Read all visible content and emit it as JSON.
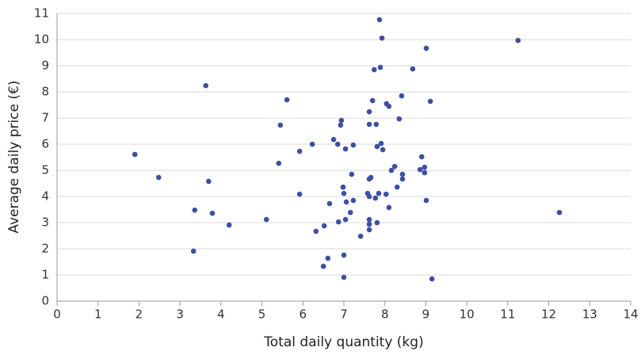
{
  "chart_data": {
    "type": "scatter",
    "xlabel": "Total daily quantity (kg)",
    "ylabel": "Average daily price (€)",
    "color": "#3d4fa3",
    "grid": true,
    "xlim": [
      0,
      14
    ],
    "xticks": [
      0,
      1,
      2,
      3,
      4,
      5,
      6,
      7,
      8,
      9,
      10,
      11,
      12,
      13,
      14
    ],
    "ylim": [
      0,
      11
    ],
    "yticks": [
      0,
      1,
      2,
      3,
      4,
      5,
      6,
      7,
      8,
      9,
      10,
      11
    ],
    "x": [
      1.9,
      2.48,
      3.63,
      4.2,
      5.11,
      5.41,
      5.61,
      5.45,
      5.92,
      5.92,
      6.23,
      6.32,
      6.52,
      6.65,
      6.75,
      6.85,
      6.94,
      6.92,
      6.98,
      7.0,
      7.04,
      7.06,
      7.0,
      7.0,
      6.87,
      7.04,
      7.16,
      7.19,
      7.23,
      7.23,
      7.41,
      7.58,
      7.62,
      7.62,
      7.62,
      7.62,
      7.66,
      7.62,
      7.62,
      7.62,
      7.7,
      7.74,
      7.77,
      7.79,
      7.81,
      7.81,
      7.85,
      7.87,
      7.89,
      7.93,
      7.91,
      7.95,
      8.03,
      8.04,
      8.1,
      8.1,
      8.16,
      8.24,
      8.3,
      8.35,
      8.41,
      8.43,
      8.43,
      8.68,
      8.9,
      8.86,
      8.97,
      8.97,
      9.01,
      9.01,
      9.11,
      9.15,
      11.25,
      12.26,
      6.5,
      6.61,
      3.33,
      3.36,
      3.7,
      3.79
    ],
    "y": [
      5.61,
      4.73,
      8.24,
      2.91,
      3.12,
      5.27,
      7.7,
      6.73,
      5.73,
      4.09,
      6.0,
      2.67,
      2.88,
      3.73,
      6.18,
      6.0,
      6.91,
      6.73,
      4.36,
      4.12,
      5.82,
      3.79,
      1.76,
      0.91,
      3.03,
      3.12,
      3.39,
      4.85,
      5.97,
      3.85,
      2.48,
      4.12,
      4.0,
      7.24,
      6.76,
      4.67,
      4.73,
      3.12,
      2.94,
      2.73,
      7.67,
      8.85,
      3.94,
      6.76,
      5.91,
      3.0,
      4.12,
      10.76,
      8.94,
      10.06,
      6.03,
      5.79,
      4.09,
      7.55,
      7.45,
      3.58,
      5.0,
      5.15,
      4.36,
      6.97,
      7.85,
      4.67,
      4.85,
      8.88,
      5.52,
      5.03,
      5.12,
      4.91,
      3.85,
      9.67,
      7.64,
      0.85,
      9.97,
      3.39,
      1.33,
      1.64,
      1.91,
      3.48,
      4.58,
      3.36
    ]
  }
}
